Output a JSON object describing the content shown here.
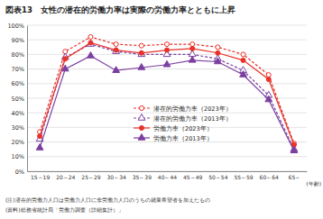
{
  "chart_data": {
    "type": "line",
    "title": "図表13　女性の潜在的労働力率は実際の労働力率とともに上昇",
    "x_label": "(年齢)",
    "categories": [
      "15～19",
      "20～24",
      "25～29",
      "30～34",
      "35～39",
      "40～44",
      "45～49",
      "50～54",
      "55～59",
      "60～64",
      "65～"
    ],
    "series": [
      {
        "name": "潜在的労働力率（2023年）",
        "color": "#e8322a",
        "marker": "circle-open",
        "line_style": "dashed",
        "values": [
          27,
          82,
          92,
          87,
          86,
          87,
          87,
          85,
          80,
          66,
          19
        ]
      },
      {
        "name": "潜在的労働力率（2013年）",
        "color": "#7b3fa0",
        "marker": "triangle-open",
        "line_style": "dashed",
        "values": [
          22,
          78,
          87,
          82,
          80,
          80,
          80,
          77,
          69,
          52,
          15
        ]
      },
      {
        "name": "労働力率（2023年）",
        "color": "#e8322a",
        "marker": "circle",
        "line_style": "solid",
        "values": [
          24,
          77,
          88,
          83,
          81,
          83,
          84,
          81,
          76,
          63,
          18
        ]
      },
      {
        "name": "労働力率（2013年）",
        "color": "#7b3fa0",
        "marker": "triangle",
        "line_style": "solid",
        "values": [
          16,
          70,
          79,
          69,
          71,
          73,
          76,
          75,
          66,
          49,
          14
        ]
      }
    ],
    "ylim": [
      0,
      100
    ],
    "yticks": [
      {
        "value": 0,
        "label": "0%"
      },
      {
        "value": 10,
        "label": "10%"
      },
      {
        "value": 20,
        "label": "20%"
      },
      {
        "value": 30,
        "label": "30%"
      },
      {
        "value": 40,
        "label": "40%"
      },
      {
        "value": 50,
        "label": "50%"
      },
      {
        "value": 60,
        "label": "60%"
      },
      {
        "value": 70,
        "label": "70%"
      },
      {
        "value": 80,
        "label": "80%"
      },
      {
        "value": 90,
        "label": "90%"
      },
      {
        "value": 100,
        "label": "100%"
      }
    ],
    "grid": true,
    "legend": "lower right",
    "notes": [
      "(注)潜在的労働力人口は労働力人口に非労働力人口のうちの就業希望者を加えたもの",
      "(資料)総務省統計局「労働力調査（詳細集計）」"
    ]
  }
}
